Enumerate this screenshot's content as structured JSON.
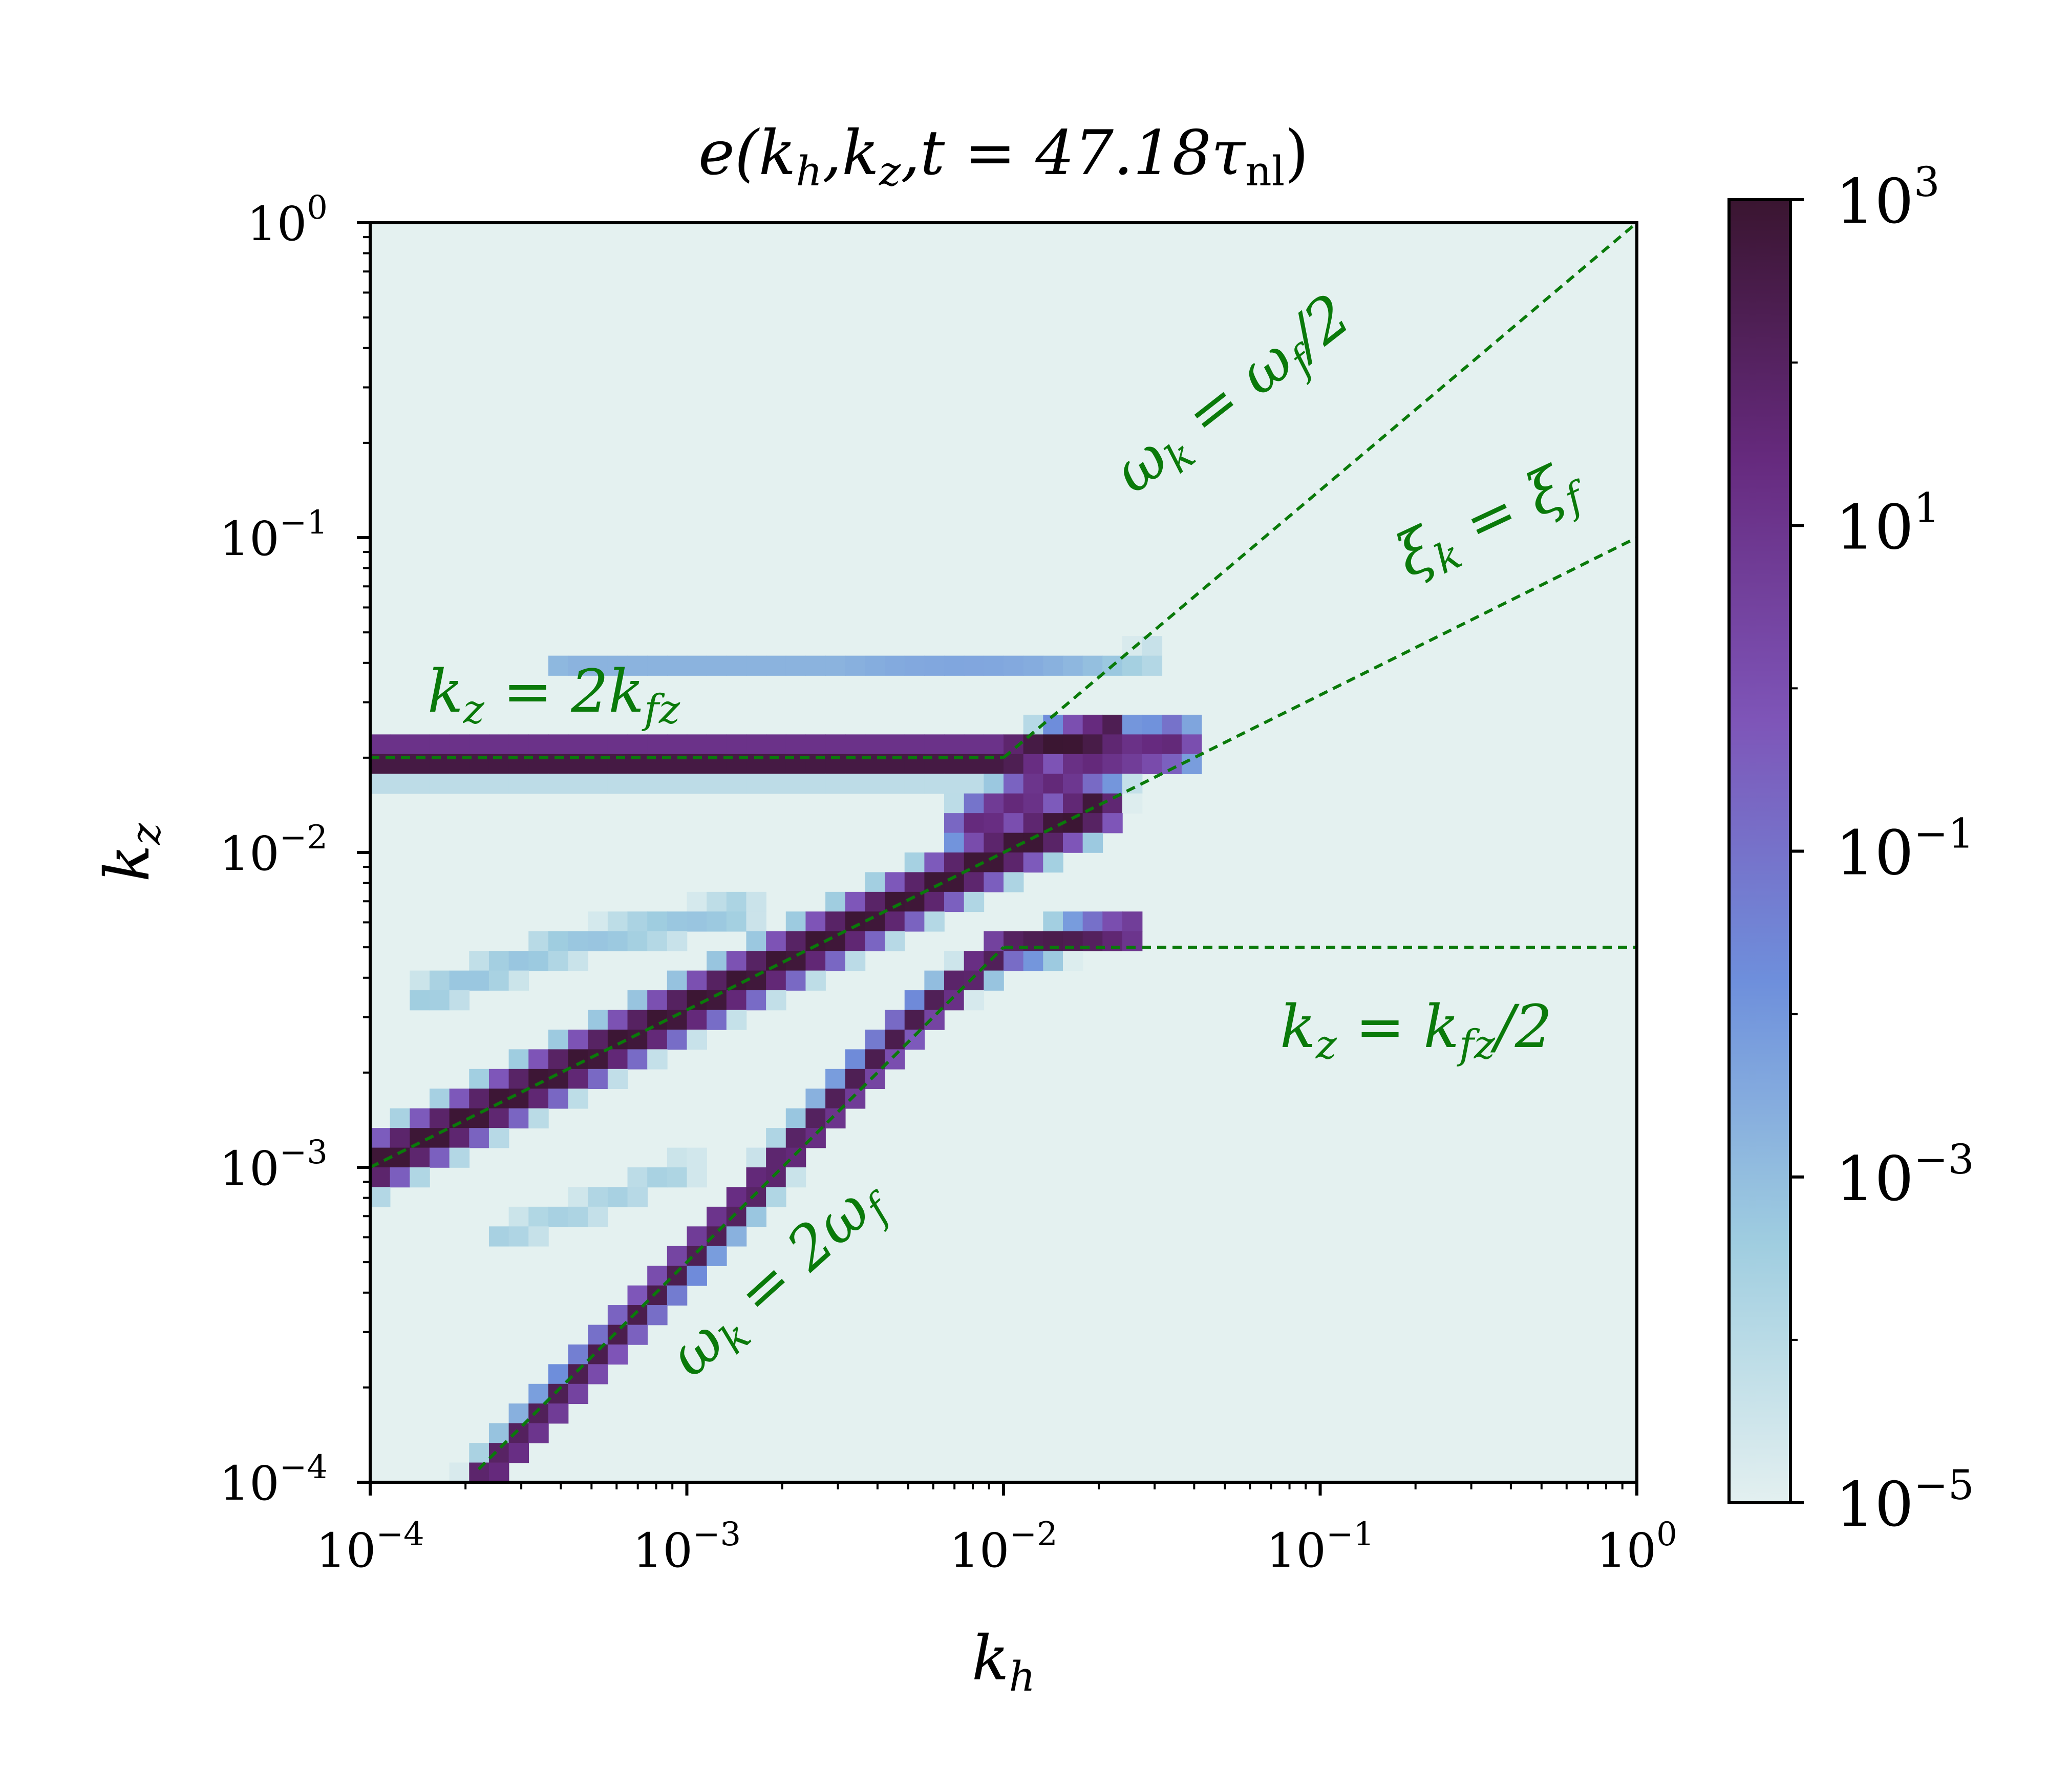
{
  "chart_data": {
    "type": "heatmap",
    "title": {
      "main": "e(k",
      "sub1": "h",
      "mid1": ",k",
      "sub2": "z",
      "mid2": ",t = 47.18τ",
      "sub3": "nl",
      "end": ")"
    },
    "xlabel": {
      "main": "k",
      "sub": "h"
    },
    "ylabel": {
      "main": "k",
      "sub": "z"
    },
    "x_scale": "log",
    "y_scale": "log",
    "xlim": [
      0.0001,
      1
    ],
    "ylim": [
      0.0001,
      1
    ],
    "x_ticks": [
      {
        "value": 0.0001,
        "base": "10",
        "exp": "−4"
      },
      {
        "value": 0.001,
        "base": "10",
        "exp": "−3"
      },
      {
        "value": 0.01,
        "base": "10",
        "exp": "−2"
      },
      {
        "value": 0.1,
        "base": "10",
        "exp": "−1"
      },
      {
        "value": 1,
        "base": "10",
        "exp": "0"
      }
    ],
    "y_ticks": [
      {
        "value": 0.0001,
        "base": "10",
        "exp": "−4"
      },
      {
        "value": 0.001,
        "base": "10",
        "exp": "−3"
      },
      {
        "value": 0.01,
        "base": "10",
        "exp": "−2"
      },
      {
        "value": 0.1,
        "base": "10",
        "exp": "−1"
      },
      {
        "value": 1,
        "base": "10",
        "exp": "0"
      }
    ],
    "colorbar": {
      "scale": "log",
      "range": [
        1e-05,
        1000
      ],
      "ticks": [
        {
          "value": 1e-05,
          "base": "10",
          "exp": "−5"
        },
        {
          "value": 0.001,
          "base": "10",
          "exp": "−3"
        },
        {
          "value": 0.1,
          "base": "10",
          "exp": "−1"
        },
        {
          "value": 10,
          "base": "10",
          "exp": "1"
        },
        {
          "value": 1000,
          "base": "10",
          "exp": "3"
        }
      ],
      "colors": [
        "#e3f0f0",
        "#9fcde0",
        "#6e8fdc",
        "#7e55b8",
        "#662a7e",
        "#3a1530"
      ]
    },
    "background_color": "#e4f1f0",
    "bands": [
      {
        "name": "kz = 2kfz branch",
        "points": [
          [
            0.0001,
            0.02
          ],
          [
            0.003,
            0.02
          ],
          [
            0.01,
            0.02
          ],
          [
            0.022,
            0.024
          ]
        ],
        "peak_log10": 3,
        "width_dex": 0.09
      },
      {
        "name": "upper faint band",
        "points": [
          [
            0.0004,
            0.038
          ],
          [
            0.003,
            0.038
          ],
          [
            0.012,
            0.04
          ],
          [
            0.03,
            0.042
          ]
        ],
        "peak_log10": -2.4,
        "width_dex": 0.07
      },
      {
        "name": "xi_k = xi_f branch",
        "points": [
          [
            0.0001,
            0.001
          ],
          [
            0.001,
            0.0032
          ],
          [
            0.01,
            0.01
          ],
          [
            0.02,
            0.014
          ]
        ],
        "peak_log10": 3,
        "width_dex": 0.11
      },
      {
        "name": "omega_k = 2 omega_f branch",
        "points": [
          [
            0.00022,
            0.0001
          ],
          [
            0.001,
            0.0005
          ],
          [
            0.005,
            0.0028
          ],
          [
            0.01,
            0.005
          ],
          [
            0.025,
            0.0056
          ]
        ],
        "peak_log10": 2.4,
        "width_dex": 0.075
      },
      {
        "name": "faint upper-left band",
        "points": [
          [
            0.00015,
            0.0035
          ],
          [
            0.0004,
            0.005
          ],
          [
            0.0015,
            0.0065
          ]
        ],
        "peak_log10": -3.2,
        "width_dex": 0.14
      },
      {
        "name": "faint lower band",
        "points": [
          [
            0.00025,
            0.0006
          ],
          [
            0.0005,
            0.00075
          ],
          [
            0.001,
            0.001
          ]
        ],
        "peak_log10": -3.6,
        "width_dex": 0.13
      },
      {
        "name": "central blob",
        "points": [
          [
            0.008,
            0.012
          ],
          [
            0.02,
            0.02
          ],
          [
            0.035,
            0.022
          ]
        ],
        "peak_log10": 1.5,
        "width_dex": 0.12
      }
    ],
    "reference_lines": [
      {
        "label": {
          "lhs": "ω",
          "lhs_sub": "k",
          "rhs": " = ω",
          "rhs_sub": "f",
          "tail": "/2"
        },
        "points": [
          [
            0.01,
            0.02
          ],
          [
            1,
            1
          ]
        ]
      },
      {
        "label": {
          "lhs": "ξ",
          "lhs_sub": "k",
          "rhs": " = ξ",
          "rhs_sub": "f",
          "tail": ""
        },
        "points": [
          [
            0.0001,
            0.001
          ],
          [
            1,
            0.1
          ]
        ]
      },
      {
        "label": {
          "lhs": "k",
          "lhs_sub": "z",
          "rhs": " = 2k",
          "rhs_sub": "fz",
          "tail": ""
        },
        "points": [
          [
            0.0001,
            0.02
          ],
          [
            0.01,
            0.02
          ]
        ]
      },
      {
        "label": {
          "lhs": "k",
          "lhs_sub": "z",
          "rhs": " = k",
          "rhs_sub": "fz",
          "tail": "/2"
        },
        "points": [
          [
            0.01,
            0.005
          ],
          [
            1,
            0.005
          ]
        ]
      },
      {
        "label": {
          "lhs": "ω",
          "lhs_sub": "k",
          "rhs": " = 2ω",
          "rhs_sub": "f",
          "tail": ""
        },
        "points": [
          [
            0.00022,
            0.00011
          ],
          [
            0.01,
            0.005
          ]
        ]
      }
    ],
    "reference_line_color": "#0a7a0a"
  }
}
